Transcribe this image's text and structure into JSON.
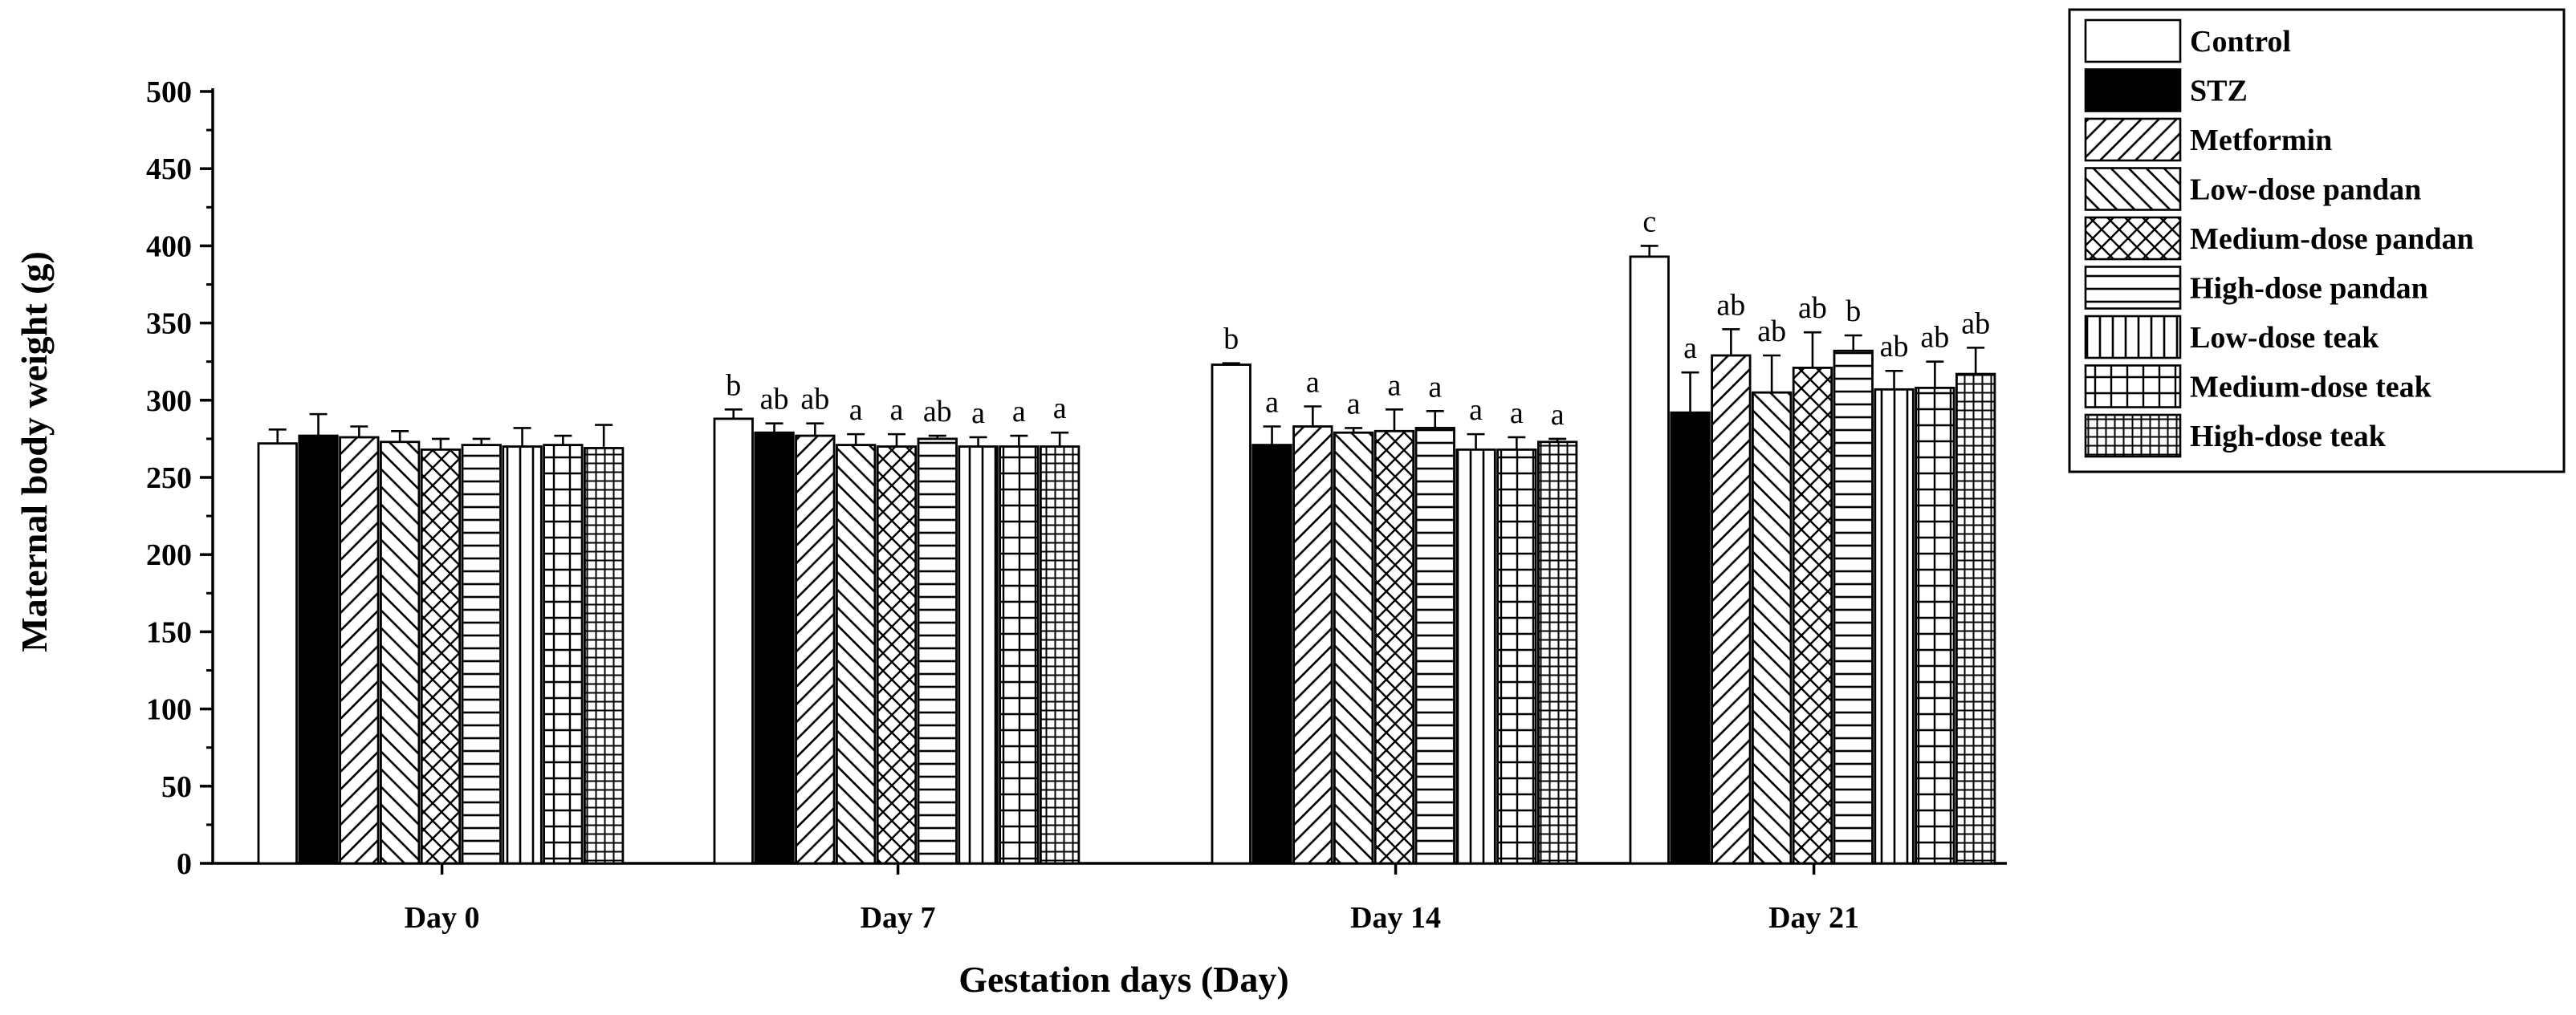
{
  "chart_data": {
    "type": "bar",
    "title": "",
    "xlabel": "Gestation days (Day)",
    "ylabel": "Maternal body weight (g)",
    "ylim": [
      0,
      500
    ],
    "yticks": [
      0,
      50,
      100,
      150,
      200,
      250,
      300,
      350,
      400,
      450,
      500
    ],
    "grid": false,
    "legend_position": "right",
    "categories": [
      "Day 0",
      "Day 7",
      "Day 14",
      "Day 21"
    ],
    "series": [
      {
        "name": "Control",
        "pattern": "blank",
        "values": [
          272,
          288,
          323,
          393
        ],
        "errors": [
          9,
          6,
          1,
          7
        ],
        "labels": [
          "",
          "b",
          "b",
          "c"
        ]
      },
      {
        "name": "STZ",
        "pattern": "solid",
        "values": [
          277,
          279,
          271,
          292
        ],
        "errors": [
          14,
          6,
          12,
          26
        ],
        "labels": [
          "",
          "ab",
          "a",
          "a"
        ]
      },
      {
        "name": "Metformin",
        "pattern": "diag-up",
        "values": [
          276,
          277,
          283,
          329
        ],
        "errors": [
          7,
          8,
          13,
          17
        ],
        "labels": [
          "",
          "ab",
          "a",
          "ab"
        ]
      },
      {
        "name": "Low-dose pandan",
        "pattern": "diag-down",
        "values": [
          273,
          271,
          279,
          305
        ],
        "errors": [
          7,
          7,
          3,
          24
        ],
        "labels": [
          "",
          "a",
          "a",
          "ab"
        ]
      },
      {
        "name": "Medium-dose pandan",
        "pattern": "crosshatch",
        "values": [
          268,
          270,
          280,
          321
        ],
        "errors": [
          7,
          8,
          14,
          23
        ],
        "labels": [
          "",
          "a",
          "a",
          "ab"
        ]
      },
      {
        "name": "High-dose pandan",
        "pattern": "horizontal",
        "values": [
          271,
          275,
          282,
          332
        ],
        "errors": [
          4,
          2,
          11,
          10
        ],
        "labels": [
          "",
          "ab",
          "a",
          "b"
        ]
      },
      {
        "name": "Low-dose teak",
        "pattern": "vertical",
        "values": [
          270,
          270,
          268,
          307
        ],
        "errors": [
          12,
          6,
          10,
          12
        ],
        "labels": [
          "",
          "a",
          "a",
          "ab"
        ]
      },
      {
        "name": "Medium-dose teak",
        "pattern": "grid",
        "values": [
          271,
          270,
          268,
          308
        ],
        "errors": [
          6,
          7,
          8,
          17
        ],
        "labels": [
          "",
          "a",
          "a",
          "ab"
        ]
      },
      {
        "name": "High-dose teak",
        "pattern": "fine-grid",
        "values": [
          269,
          270,
          273,
          317
        ],
        "errors": [
          15,
          9,
          2,
          17
        ],
        "labels": [
          "",
          "a",
          "a",
          "ab"
        ]
      }
    ]
  }
}
